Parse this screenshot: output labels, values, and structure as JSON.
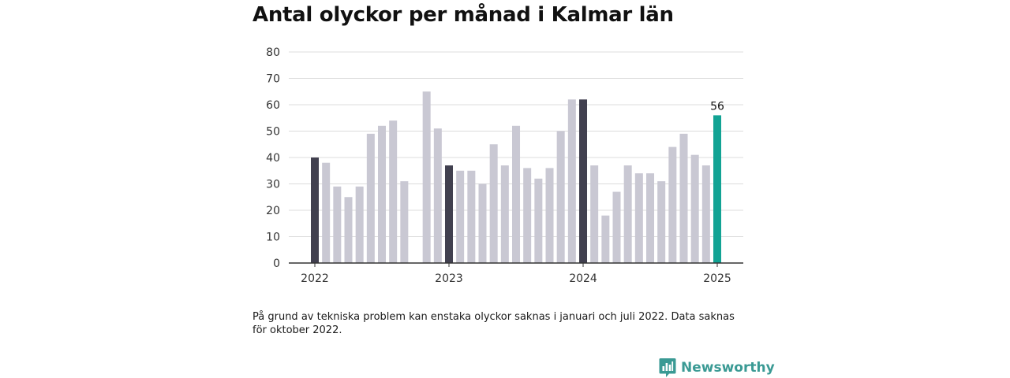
{
  "title": "Antal olyckor per månad i Kalmar län",
  "footnote": "På grund av tekniska problem kan enstaka olyckor saknas i januari och juli 2022. Data saknas för oktober 2022.",
  "brand": {
    "name": "Newsworthy",
    "icon": "newsworthy-bar-chart-icon"
  },
  "colors": {
    "january": "#41404f",
    "regular": "#c9c8d3",
    "latest": "#12a394",
    "grid": "#dcdcdc",
    "axis": "#333333"
  },
  "chart_data": {
    "type": "bar",
    "x_tick_labels": [
      "2022",
      "2023",
      "2024",
      "2025"
    ],
    "ylim": [
      0,
      80
    ],
    "yticks": [
      0,
      10,
      20,
      30,
      40,
      50,
      60,
      70,
      80
    ],
    "grid": true,
    "months": [
      "2022-01",
      "2022-02",
      "2022-03",
      "2022-04",
      "2022-05",
      "2022-06",
      "2022-07",
      "2022-08",
      "2022-09",
      "2022-10",
      "2022-11",
      "2022-12",
      "2023-01",
      "2023-02",
      "2023-03",
      "2023-04",
      "2023-05",
      "2023-06",
      "2023-07",
      "2023-08",
      "2023-09",
      "2023-10",
      "2023-11",
      "2023-12",
      "2024-01",
      "2024-02",
      "2024-03",
      "2024-04",
      "2024-05",
      "2024-06",
      "2024-07",
      "2024-08",
      "2024-09",
      "2024-10",
      "2024-11",
      "2024-12",
      "2025-01"
    ],
    "values": [
      40,
      38,
      29,
      25,
      29,
      49,
      52,
      54,
      31,
      null,
      65,
      51,
      37,
      35,
      35,
      30,
      45,
      37,
      52,
      36,
      32,
      36,
      50,
      62,
      62,
      37,
      18,
      27,
      37,
      34,
      34,
      31,
      44,
      49,
      41,
      37,
      56
    ],
    "data_labels": [
      {
        "month": "2025-01",
        "text": "56"
      }
    ]
  }
}
